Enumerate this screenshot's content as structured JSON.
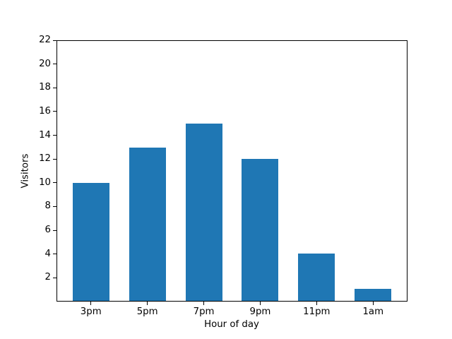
{
  "chart_data": {
    "type": "bar",
    "categories": [
      "3pm",
      "5pm",
      "7pm",
      "9pm",
      "11pm",
      "1am"
    ],
    "values": [
      10,
      13,
      15,
      12,
      4,
      1
    ],
    "title": "",
    "xlabel": "Hour of day",
    "ylabel": "Visitors",
    "ylim": [
      0,
      22
    ],
    "yticks": [
      2,
      4,
      6,
      8,
      10,
      12,
      14,
      16,
      18,
      20,
      22
    ],
    "xlim": [
      -0.61,
      5.61
    ],
    "bar_width": 0.65,
    "bar_color": "#1f77b4",
    "axis_color": "#000000",
    "background": "#ffffff",
    "grid": false,
    "legend": null
  }
}
